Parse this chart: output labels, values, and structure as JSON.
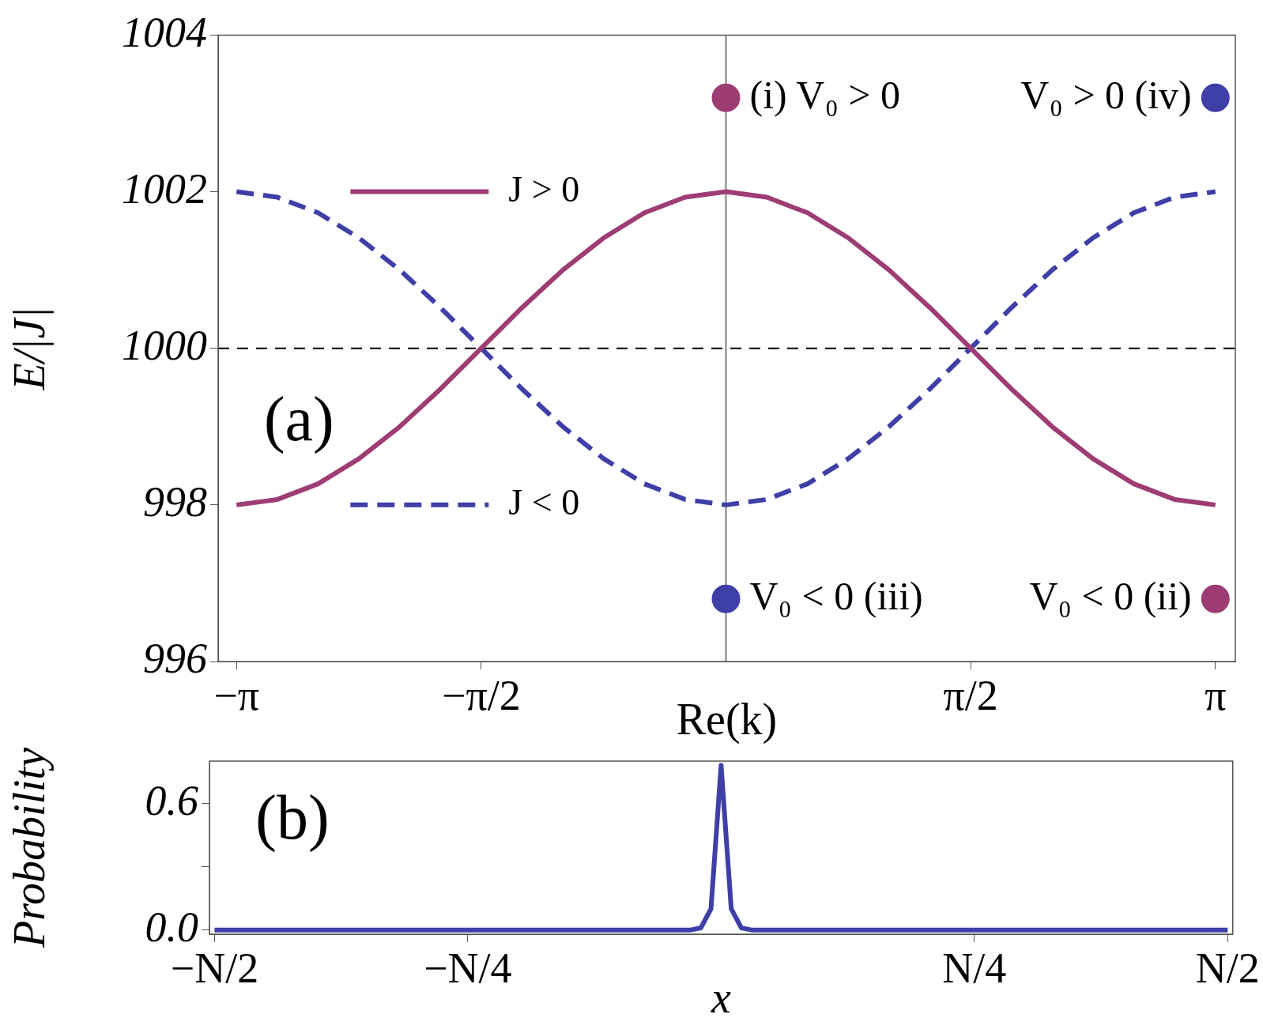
{
  "chart_data": [
    {
      "type": "line",
      "xlabel": "Re(k)",
      "ylabel": "E/|J|",
      "xlim": [
        -3.26,
        3.27
      ],
      "ylim": [
        996,
        1004
      ],
      "xticks": [
        {
          "value": -3.142,
          "label": "−π"
        },
        {
          "value": -1.571,
          "label": "−π/2"
        },
        {
          "value": 1.571,
          "label": "π/2"
        },
        {
          "value": 3.142,
          "label": "π"
        }
      ],
      "yticks": [
        996,
        998,
        1000,
        1002,
        1004
      ],
      "legend": "left",
      "marker": "none",
      "ref_lines": [
        {
          "axis": "x",
          "value": 0,
          "color": "#808080",
          "line_style": "solid"
        },
        {
          "axis": "y",
          "value": 1000,
          "color": "#000000",
          "line_style": "dashed"
        }
      ],
      "annotations": [
        "(a)"
      ],
      "series": [
        {
          "name": "J > 0",
          "color": "#9e3d74",
          "line_style": "solid",
          "x": [
            -3.142,
            -2.88,
            -2.618,
            -2.356,
            -2.094,
            -1.833,
            -1.571,
            -1.309,
            -1.047,
            -0.785,
            -0.524,
            -0.262,
            0,
            0.262,
            0.524,
            0.785,
            1.047,
            1.309,
            1.571,
            1.833,
            2.094,
            2.356,
            2.618,
            2.88,
            3.142
          ],
          "values": [
            998,
            998.07,
            998.27,
            998.59,
            999,
            999.48,
            1000,
            1000.52,
            1001,
            1001.41,
            1001.73,
            1001.93,
            1002,
            1001.93,
            1001.73,
            1001.41,
            1001,
            1000.52,
            1000,
            999.48,
            999,
            998.59,
            998.27,
            998.07,
            998
          ]
        },
        {
          "name": "J < 0",
          "color": "#3f3fa8",
          "line_style": "dashed",
          "x": [
            -3.142,
            -2.88,
            -2.618,
            -2.356,
            -2.094,
            -1.833,
            -1.571,
            -1.309,
            -1.047,
            -0.785,
            -0.524,
            -0.262,
            0,
            0.262,
            0.524,
            0.785,
            1.047,
            1.309,
            1.571,
            1.833,
            2.094,
            2.356,
            2.618,
            2.88,
            3.142
          ],
          "values": [
            1002,
            1001.93,
            1001.73,
            1001.41,
            1001,
            1000.52,
            1000,
            999.48,
            999,
            998.59,
            998.27,
            998.07,
            998,
            998.07,
            998.27,
            998.59,
            999,
            999.48,
            1000,
            1000.52,
            1001,
            1001.41,
            1001.73,
            1001.93,
            1002
          ]
        },
        {
          "type": "scatter",
          "name": "(i) V₀ > 0",
          "marker": "circle",
          "color": "#9e3d74",
          "x": [
            0
          ],
          "values": [
            1003.2
          ]
        },
        {
          "type": "scatter",
          "name": "V₀ > 0 (iv)",
          "marker": "circle",
          "color": "#3f3fa8",
          "x": [
            3.142
          ],
          "values": [
            1003.2
          ]
        },
        {
          "type": "scatter",
          "name": "V₀ < 0 (iii)",
          "marker": "circle",
          "color": "#3f3fa8",
          "x": [
            0
          ],
          "values": [
            996.8
          ]
        },
        {
          "type": "scatter",
          "name": "V₀ < 0 (ii)",
          "marker": "circle",
          "color": "#9e3d74",
          "x": [
            3.142
          ],
          "values": [
            996.8
          ]
        }
      ]
    },
    {
      "type": "line",
      "xlabel": "x",
      "ylabel": "Probability",
      "ylim": [
        -0.02,
        0.8
      ],
      "categories": [
        "−N/2",
        null,
        null,
        null,
        null,
        null,
        null,
        null,
        null,
        null,
        null,
        null,
        null,
        null,
        null,
        null,
        null,
        null,
        null,
        null,
        null,
        null,
        null,
        null,
        null,
        "−N/4",
        null,
        null,
        null,
        null,
        null,
        null,
        null,
        null,
        null,
        null,
        null,
        null,
        null,
        null,
        null,
        null,
        null,
        null,
        null,
        null,
        null,
        null,
        null,
        null,
        null,
        null,
        null,
        null,
        null,
        null,
        null,
        null,
        null,
        null,
        null,
        null,
        null,
        null,
        null,
        null,
        null,
        null,
        null,
        null,
        null,
        null,
        null,
        null,
        null,
        "N/4",
        null,
        null,
        null,
        null,
        null,
        null,
        null,
        null,
        null,
        null,
        null,
        null,
        null,
        null,
        null,
        null,
        null,
        null,
        null,
        null,
        null,
        null,
        null,
        null,
        "N/2"
      ],
      "yticks": [
        {
          "value": 0,
          "label": "0.0"
        },
        {
          "value": 0.3,
          "label": null
        },
        {
          "value": 0.6,
          "label": "0.6"
        }
      ],
      "marker": "none",
      "annotations": [
        "(b)"
      ],
      "series": [
        {
          "color": "#3f3fa8",
          "line_style": "solid",
          "values": [
            0,
            0,
            0,
            0,
            0,
            0,
            0,
            0,
            0,
            0,
            0,
            0,
            0,
            0,
            0,
            0,
            0,
            0,
            0,
            0,
            0,
            0,
            0,
            0,
            0,
            0,
            0,
            0,
            0,
            0,
            0,
            0,
            0,
            0,
            0,
            0,
            0,
            0,
            0,
            0,
            0,
            0,
            0,
            0,
            0,
            0,
            0,
            0,
            0.01,
            0.1,
            0.78,
            0.1,
            0.01,
            0,
            0,
            0,
            0,
            0,
            0,
            0,
            0,
            0,
            0,
            0,
            0,
            0,
            0,
            0,
            0,
            0,
            0,
            0,
            0,
            0,
            0,
            0,
            0,
            0,
            0,
            0,
            0,
            0,
            0,
            0,
            0,
            0,
            0,
            0,
            0,
            0,
            0,
            0,
            0,
            0,
            0,
            0,
            0,
            0,
            0,
            0,
            0
          ]
        }
      ]
    }
  ]
}
